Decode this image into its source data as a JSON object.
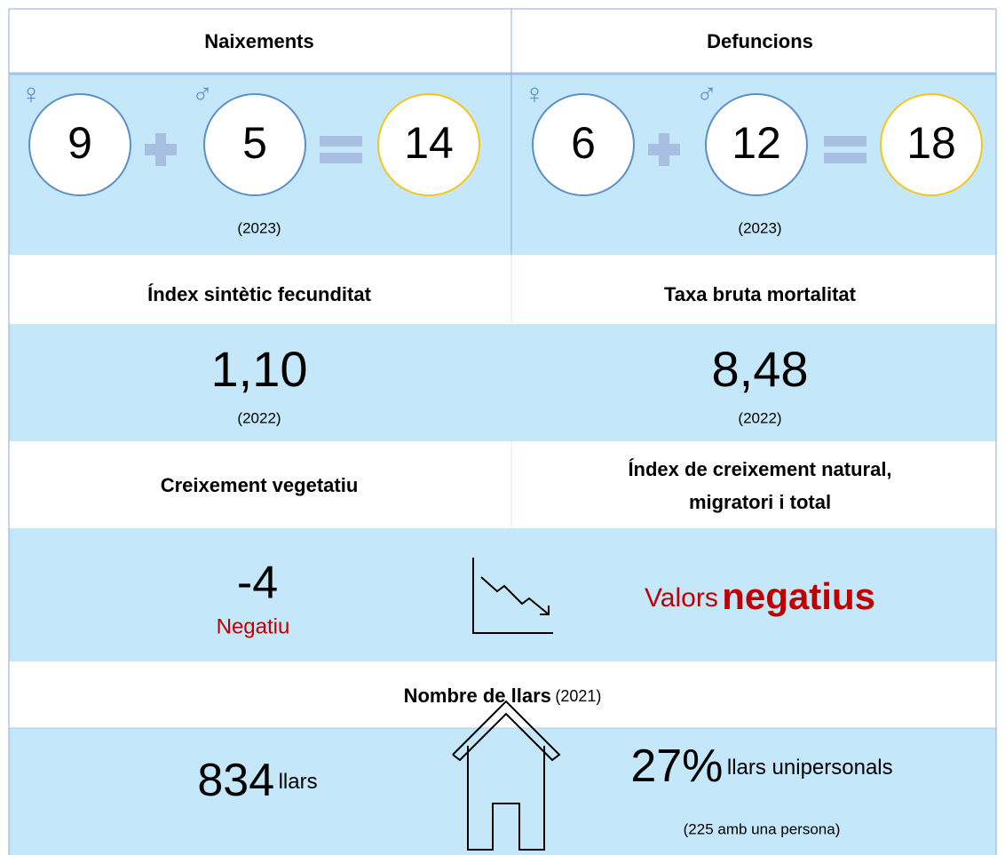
{
  "naixements": {
    "title": "Naixements",
    "female_symbol": "♀",
    "male_symbol": "♂",
    "female": 9,
    "male": 5,
    "total": 14,
    "year": "(2023)"
  },
  "defuncions": {
    "title": "Defuncions",
    "female_symbol": "♀",
    "male_symbol": "♂",
    "female": 6,
    "male": 12,
    "total": 18,
    "year": "(2023)"
  },
  "fecunditat": {
    "title": "Índex sintètic fecunditat",
    "value": "1,10",
    "year": "(2022)"
  },
  "mortalitat": {
    "title": "Taxa bruta mortalitat",
    "value": "8,48",
    "year": "(2022)"
  },
  "creixement_vegetatiu": {
    "title": "Creixement vegetatiu",
    "value": -4,
    "label": "Negatiu"
  },
  "index_creixement": {
    "title_lines": [
      "Índex de creixement natural,",
      "migratori i total"
    ],
    "prefix": "Valors",
    "emphasis": "negatius"
  },
  "llars": {
    "title": "Nombre de llars",
    "year": "(2021)",
    "count": 834,
    "count_unit": "llars",
    "share": "27%",
    "share_label": "llars unipersonals",
    "single_note": "(225 amb una persona)"
  }
}
